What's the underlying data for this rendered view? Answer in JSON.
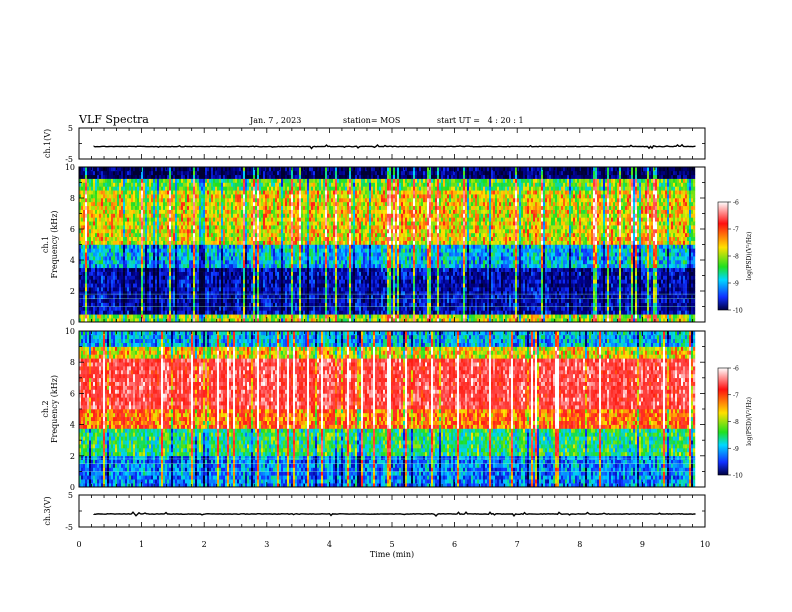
{
  "header": {
    "title": "VLF Spectra",
    "date": "Jan. 7 , 2023",
    "station": "station= MOS",
    "start": "start UT =   4 : 20 : 1"
  },
  "colorbar": {
    "label": "log(PSD)(V²/Hz)",
    "ticks": [
      "-6",
      "-7",
      "-8",
      "-9",
      "-10"
    ],
    "colors": [
      "#ffffff",
      "#ff1010",
      "#ffe000",
      "#20e020",
      "#00d8ff",
      "#1030ff",
      "#000040"
    ]
  },
  "chart_data": [
    {
      "type": "line",
      "name": "ch1-waveform",
      "ylabel": "ch.1(V)",
      "ylim": [
        -5,
        5
      ],
      "y_ticks": [
        "5",
        "-5"
      ],
      "baseline_value": 0,
      "xlim": [
        0,
        10
      ]
    },
    {
      "type": "heatmap",
      "name": "ch1-spectrogram",
      "ylabel": "ch.1 Frequency (kHz)",
      "ylabel_channel": "ch.1",
      "ylabel_text": "Frequency (kHz)",
      "ylim": [
        0,
        10
      ],
      "y_ticks": [
        "0",
        "2",
        "4",
        "6",
        "8",
        "10"
      ],
      "xlim": [
        0,
        10
      ],
      "data_end_min": 9.85,
      "intensity_bands": [
        {
          "from_khz": 0.0,
          "to_khz": 0.5,
          "level": 0.55
        },
        {
          "from_khz": 0.5,
          "to_khz": 3.5,
          "level": 0.15
        },
        {
          "from_khz": 3.5,
          "to_khz": 5.0,
          "level": 0.35
        },
        {
          "from_khz": 5.0,
          "to_khz": 8.5,
          "level": 0.6
        },
        {
          "from_khz": 8.5,
          "to_khz": 9.3,
          "level": 0.5
        },
        {
          "from_khz": 9.3,
          "to_khz": 10.0,
          "level": 0.08
        }
      ]
    },
    {
      "type": "heatmap",
      "name": "ch2-spectrogram",
      "ylabel": "ch.2 Frequency (kHz)",
      "ylabel_channel": "ch.2",
      "ylabel_text": "Frequency (kHz)",
      "ylim": [
        0,
        10
      ],
      "y_ticks": [
        "0",
        "2",
        "4",
        "6",
        "8",
        "10"
      ],
      "xlim": [
        0,
        10
      ],
      "data_end_min": 9.85,
      "intensity_bands": [
        {
          "from_khz": 0.0,
          "to_khz": 2.0,
          "level": 0.3
        },
        {
          "from_khz": 2.0,
          "to_khz": 3.8,
          "level": 0.45
        },
        {
          "from_khz": 3.8,
          "to_khz": 5.0,
          "level": 0.7
        },
        {
          "from_khz": 5.0,
          "to_khz": 8.2,
          "level": 0.85
        },
        {
          "from_khz": 8.2,
          "to_khz": 9.0,
          "level": 0.6
        },
        {
          "from_khz": 9.0,
          "to_khz": 10.0,
          "level": 0.35
        }
      ]
    },
    {
      "type": "line",
      "name": "ch3-waveform",
      "ylabel": "ch.3(V)",
      "ylim": [
        -5,
        5
      ],
      "y_ticks": [
        "5",
        "-5"
      ],
      "baseline_value": 0,
      "xlim": [
        0,
        10
      ]
    }
  ],
  "x_axis": {
    "label": "Time (min)",
    "ticks": [
      "0",
      "1",
      "2",
      "3",
      "4",
      "5",
      "6",
      "7",
      "8",
      "9",
      "10"
    ],
    "range": [
      0,
      10
    ]
  }
}
